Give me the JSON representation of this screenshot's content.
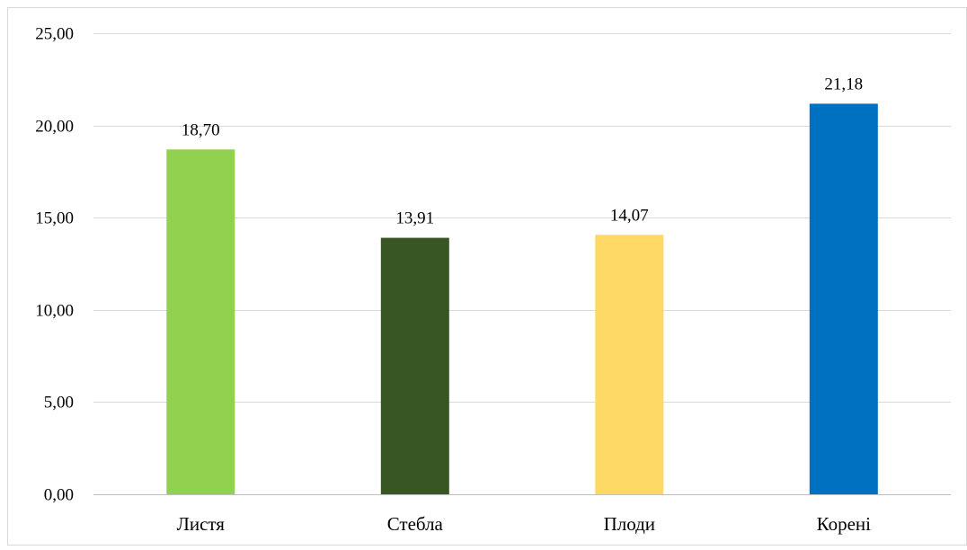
{
  "chart_data": {
    "type": "bar",
    "title": "",
    "xlabel": "",
    "ylabel": "",
    "categories": [
      "Листя",
      "Стебла",
      "Плоди",
      "Корені"
    ],
    "values": [
      18.7,
      13.91,
      14.07,
      21.18
    ],
    "value_labels": [
      "18,70",
      "13,91",
      "14,07",
      "21,18"
    ],
    "bar_colors": [
      "#92d050",
      "#375623",
      "#ffd966",
      "#0070c0"
    ],
    "ylim": [
      0,
      25
    ],
    "yticks": [
      0,
      5,
      10,
      15,
      20,
      25
    ],
    "ytick_labels": [
      "0,00",
      "5,00",
      "10,00",
      "15,00",
      "20,00",
      "25,00"
    ],
    "grid": true,
    "legend": "none"
  },
  "colors": {
    "gridline": "#d9d9d9",
    "axis": "#bfbfbf",
    "text": "#000000",
    "frame": "#d9d9d9"
  }
}
